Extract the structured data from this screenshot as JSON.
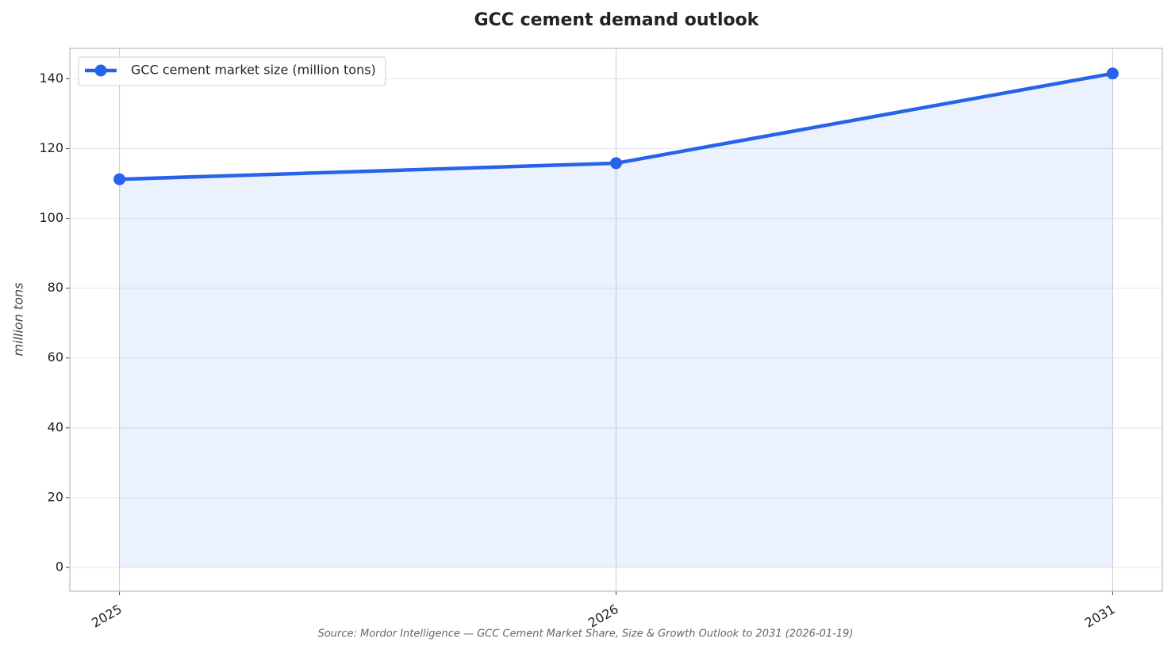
{
  "chart_data": {
    "type": "line",
    "title": "GCC cement demand outlook",
    "y_label": "million tons",
    "source": "Source: Mordor Intelligence — GCC Cement Market Share, Size & Growth Outlook to 2031 (2026-01-19)",
    "categories": [
      "2025",
      "2026",
      "2031"
    ],
    "series": [
      {
        "name": "GCC cement market size (million tons)",
        "color": "#2563eb",
        "values": [
          111.2,
          115.8,
          141.5
        ]
      }
    ],
    "ylim": [
      -6.8,
      148.7
    ],
    "yticks": [
      0,
      20,
      40,
      60,
      80,
      100,
      120,
      140
    ],
    "grid": true,
    "area_fill": true,
    "legend": "upper left"
  }
}
